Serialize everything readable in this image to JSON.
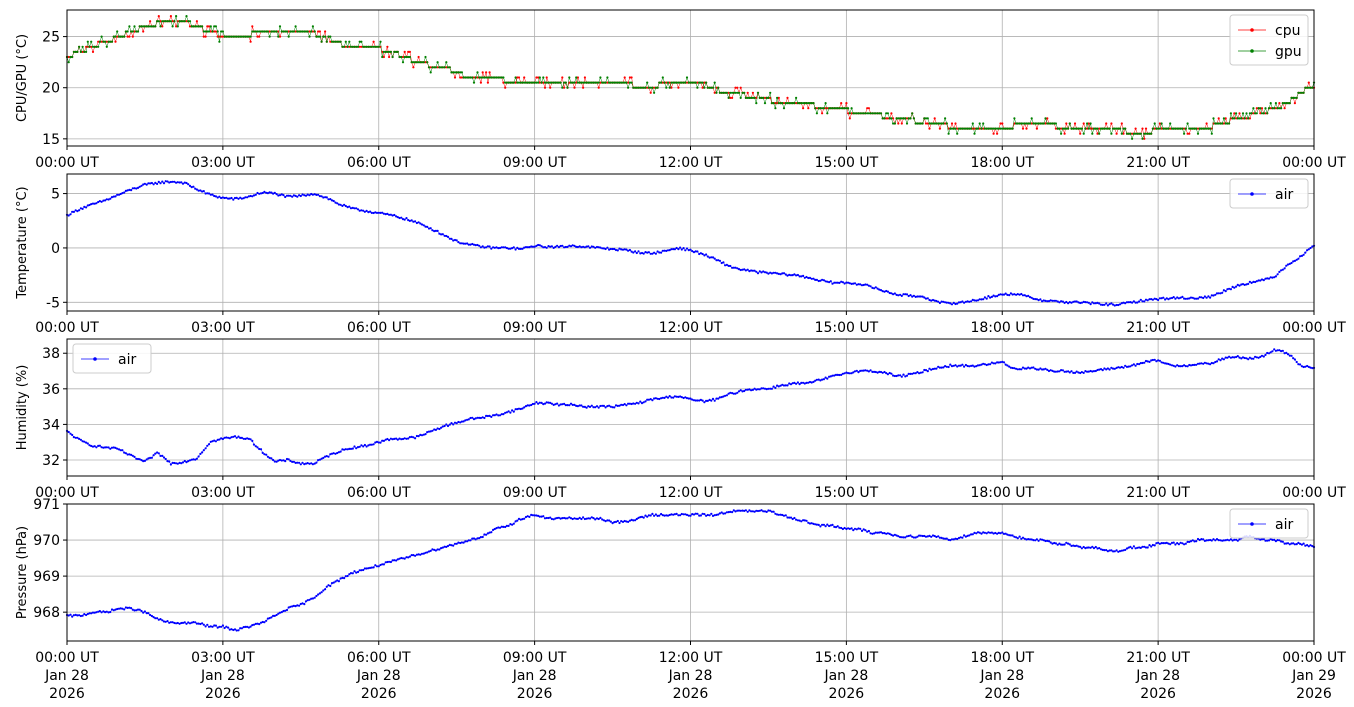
{
  "chart_data": [
    {
      "type": "line",
      "ylabel": "CPU/GPU (°C)",
      "xlim": [
        "2026-01-28T00:00",
        "2026-01-29T00:00"
      ],
      "ylim": [
        14.3,
        27.6
      ],
      "yticks": [
        15,
        20,
        25
      ],
      "grid": true,
      "legend_position": "top-right",
      "series": [
        {
          "name": "cpu",
          "color": "#ff0000",
          "x": [
            0,
            0.25,
            0.5,
            0.75,
            1,
            1.25,
            1.5,
            1.75,
            2,
            2.25,
            2.5,
            2.75,
            3,
            3.25,
            3.5,
            3.75,
            4,
            4.25,
            4.5,
            4.75,
            5,
            5.25,
            5.5,
            5.75,
            6,
            6.25,
            6.5,
            6.75,
            7,
            7.25,
            7.5,
            7.75,
            8,
            8.25,
            8.5,
            8.75,
            9,
            9.25,
            9.5,
            9.75,
            10,
            10.25,
            10.5,
            10.75,
            11,
            11.25,
            11.5,
            11.75,
            12,
            12.25,
            12.5,
            12.75,
            13,
            13.25,
            13.5,
            13.75,
            14,
            14.25,
            14.5,
            14.75,
            15,
            15.25,
            15.5,
            15.75,
            16,
            16.25,
            16.5,
            16.75,
            17,
            17.25,
            17.5,
            17.75,
            18,
            18.25,
            18.5,
            18.75,
            19,
            19.25,
            19.5,
            19.75,
            20,
            20.25,
            20.5,
            20.75,
            21,
            21.25,
            21.5,
            21.75,
            22,
            22.25,
            22.5,
            22.75,
            23,
            23.25,
            23.5,
            23.75,
            24
          ],
          "values": [
            23.0,
            23.5,
            24.0,
            24.5,
            25.0,
            25.5,
            26.0,
            26.3,
            26.6,
            26.5,
            26.0,
            25.5,
            25.0,
            25.0,
            25.2,
            25.5,
            25.6,
            25.6,
            25.5,
            25.3,
            25.0,
            24.3,
            24.0,
            24.0,
            23.8,
            23.5,
            23.0,
            22.5,
            22.2,
            22.0,
            21.5,
            21.0,
            21.0,
            20.8,
            20.7,
            20.6,
            20.6,
            20.6,
            20.7,
            20.7,
            20.7,
            20.6,
            20.5,
            20.3,
            20.2,
            20.2,
            20.3,
            20.4,
            20.5,
            20.2,
            19.8,
            19.5,
            19.3,
            19.0,
            18.8,
            18.6,
            18.4,
            18.3,
            18.2,
            18.0,
            17.8,
            17.6,
            17.4,
            17.2,
            17.0,
            16.8,
            16.6,
            16.5,
            16.2,
            16.0,
            16.0,
            16.0,
            16.0,
            16.3,
            16.5,
            16.4,
            16.3,
            16.0,
            16.0,
            16.0,
            16.0,
            15.8,
            15.7,
            15.7,
            15.8,
            16.0,
            16.1,
            16.2,
            16.2,
            16.5,
            17.0,
            17.2,
            17.5,
            18.0,
            18.5,
            19.5,
            20.3
          ]
        },
        {
          "name": "gpu",
          "color": "#008000",
          "x": [
            0,
            0.25,
            0.5,
            0.75,
            1,
            1.25,
            1.5,
            1.75,
            2,
            2.25,
            2.5,
            2.75,
            3,
            3.25,
            3.5,
            3.75,
            4,
            4.25,
            4.5,
            4.75,
            5,
            5.25,
            5.5,
            5.75,
            6,
            6.25,
            6.5,
            6.75,
            7,
            7.25,
            7.5,
            7.75,
            8,
            8.25,
            8.5,
            8.75,
            9,
            9.25,
            9.5,
            9.75,
            10,
            10.25,
            10.5,
            10.75,
            11,
            11.25,
            11.5,
            11.75,
            12,
            12.25,
            12.5,
            12.75,
            13,
            13.25,
            13.5,
            13.75,
            14,
            14.25,
            14.5,
            14.75,
            15,
            15.25,
            15.5,
            15.75,
            16,
            16.25,
            16.5,
            16.75,
            17,
            17.25,
            17.5,
            17.75,
            18,
            18.25,
            18.5,
            18.75,
            19,
            19.25,
            19.5,
            19.75,
            20,
            20.25,
            20.5,
            20.75,
            21,
            21.25,
            21.5,
            21.75,
            22,
            22.25,
            22.5,
            22.75,
            23,
            23.25,
            23.5,
            23.75,
            24
          ],
          "values": [
            23.0,
            23.5,
            24.0,
            24.5,
            25.0,
            25.5,
            26.0,
            26.3,
            26.6,
            26.5,
            26.0,
            25.5,
            25.0,
            25.0,
            25.2,
            25.5,
            25.6,
            25.6,
            25.5,
            25.3,
            25.0,
            24.3,
            24.0,
            24.0,
            23.8,
            23.5,
            23.0,
            22.5,
            22.2,
            22.0,
            21.5,
            21.0,
            21.0,
            20.8,
            20.7,
            20.6,
            20.6,
            20.6,
            20.7,
            20.7,
            20.7,
            20.6,
            20.5,
            20.3,
            20.2,
            20.2,
            20.3,
            20.4,
            20.5,
            20.2,
            19.8,
            19.5,
            19.3,
            19.0,
            18.8,
            18.6,
            18.4,
            18.3,
            18.2,
            18.0,
            17.8,
            17.6,
            17.4,
            17.2,
            17.0,
            16.8,
            16.6,
            16.5,
            16.2,
            16.0,
            16.0,
            16.0,
            16.0,
            16.3,
            16.5,
            16.4,
            16.3,
            16.0,
            16.0,
            16.0,
            16.0,
            15.8,
            15.7,
            15.7,
            15.8,
            16.0,
            16.1,
            16.2,
            16.2,
            16.5,
            17.0,
            17.2,
            17.5,
            18.0,
            18.5,
            19.5,
            20.3
          ]
        }
      ]
    },
    {
      "type": "line",
      "ylabel": "Temperature (°C)",
      "xlim": [
        "2026-01-28T00:00",
        "2026-01-29T00:00"
      ],
      "ylim": [
        -5.8,
        6.8
      ],
      "yticks": [
        -5,
        0,
        5
      ],
      "grid": true,
      "legend_position": "top-right",
      "series": [
        {
          "name": "air",
          "color": "#0000ff",
          "x": [
            0,
            0.25,
            0.5,
            0.75,
            1,
            1.25,
            1.5,
            1.75,
            2,
            2.25,
            2.5,
            2.75,
            3,
            3.25,
            3.5,
            3.75,
            4,
            4.25,
            4.5,
            4.75,
            5,
            5.25,
            5.5,
            5.75,
            6,
            6.25,
            6.5,
            6.75,
            7,
            7.25,
            7.5,
            7.75,
            8,
            8.25,
            8.5,
            8.75,
            9,
            9.25,
            9.5,
            9.75,
            10,
            10.25,
            10.5,
            10.75,
            11,
            11.25,
            11.5,
            11.75,
            12,
            12.25,
            12.5,
            12.75,
            13,
            13.25,
            13.5,
            13.75,
            14,
            14.25,
            14.5,
            14.75,
            15,
            15.25,
            15.5,
            15.75,
            16,
            16.25,
            16.5,
            16.75,
            17,
            17.25,
            17.5,
            17.75,
            18,
            18.25,
            18.5,
            18.75,
            19,
            19.25,
            19.5,
            19.75,
            20,
            20.25,
            20.5,
            20.75,
            21,
            21.25,
            21.5,
            21.75,
            22,
            22.25,
            22.5,
            22.75,
            23,
            23.25,
            23.5,
            23.75,
            24
          ],
          "values": [
            3.0,
            3.6,
            4.0,
            4.4,
            4.9,
            5.4,
            5.8,
            6.0,
            6.1,
            6.0,
            5.4,
            4.9,
            4.6,
            4.5,
            4.7,
            5.1,
            5.0,
            4.7,
            4.8,
            5.0,
            4.6,
            4.0,
            3.6,
            3.4,
            3.2,
            3.0,
            2.7,
            2.3,
            1.8,
            1.2,
            0.6,
            0.3,
            0.1,
            0.0,
            0.0,
            -0.1,
            0.2,
            0.1,
            0.1,
            0.2,
            0.1,
            0.0,
            -0.1,
            -0.2,
            -0.4,
            -0.5,
            -0.3,
            0.0,
            -0.2,
            -0.6,
            -1.1,
            -1.7,
            -2.0,
            -2.2,
            -2.3,
            -2.4,
            -2.5,
            -2.7,
            -3.0,
            -3.2,
            -3.2,
            -3.3,
            -3.6,
            -4.0,
            -4.3,
            -4.4,
            -4.5,
            -5.0,
            -5.1,
            -5.0,
            -4.8,
            -4.5,
            -4.3,
            -4.2,
            -4.5,
            -4.8,
            -4.9,
            -5.0,
            -5.0,
            -5.1,
            -5.2,
            -5.2,
            -5.0,
            -4.8,
            -4.7,
            -4.6,
            -4.6,
            -4.6,
            -4.5,
            -4.0,
            -3.5,
            -3.2,
            -3.0,
            -2.6,
            -1.5,
            -0.8,
            0.3
          ]
        }
      ]
    },
    {
      "type": "line",
      "ylabel": "Humidity (%)",
      "xlim": [
        "2026-01-28T00:00",
        "2026-01-29T00:00"
      ],
      "ylim": [
        31.1,
        38.8
      ],
      "yticks": [
        32,
        34,
        36,
        38
      ],
      "grid": true,
      "legend_position": "top-left",
      "series": [
        {
          "name": "air",
          "color": "#0000ff",
          "x": [
            0,
            0.25,
            0.5,
            0.75,
            1,
            1.25,
            1.5,
            1.75,
            2,
            2.25,
            2.5,
            2.75,
            3,
            3.25,
            3.5,
            3.75,
            4,
            4.25,
            4.5,
            4.75,
            5,
            5.25,
            5.5,
            5.75,
            6,
            6.25,
            6.5,
            6.75,
            7,
            7.25,
            7.5,
            7.75,
            8,
            8.25,
            8.5,
            8.75,
            9,
            9.25,
            9.5,
            9.75,
            10,
            10.25,
            10.5,
            10.75,
            11,
            11.25,
            11.5,
            11.75,
            12,
            12.25,
            12.5,
            12.75,
            13,
            13.25,
            13.5,
            13.75,
            14,
            14.25,
            14.5,
            14.75,
            15,
            15.25,
            15.5,
            15.75,
            16,
            16.25,
            16.5,
            16.75,
            17,
            17.25,
            17.5,
            17.75,
            18,
            18.25,
            18.5,
            18.75,
            19,
            19.25,
            19.5,
            19.75,
            20,
            20.25,
            20.5,
            20.75,
            21,
            21.25,
            21.5,
            21.75,
            22,
            22.25,
            22.5,
            22.75,
            23,
            23.25,
            23.5,
            23.75,
            24
          ],
          "values": [
            33.6,
            33.1,
            32.8,
            32.7,
            32.6,
            32.2,
            31.9,
            32.4,
            31.8,
            31.9,
            32.1,
            33.0,
            33.2,
            33.3,
            33.2,
            32.5,
            31.9,
            32.0,
            31.8,
            31.8,
            32.2,
            32.5,
            32.7,
            32.8,
            33.0,
            33.2,
            33.2,
            33.3,
            33.6,
            33.9,
            34.1,
            34.3,
            34.4,
            34.5,
            34.7,
            34.9,
            35.2,
            35.2,
            35.1,
            35.1,
            35.0,
            35.0,
            35.0,
            35.1,
            35.2,
            35.4,
            35.5,
            35.6,
            35.4,
            35.3,
            35.4,
            35.7,
            35.9,
            36.0,
            36.0,
            36.2,
            36.3,
            36.3,
            36.5,
            36.7,
            36.9,
            37.0,
            37.0,
            36.9,
            36.7,
            36.8,
            37.0,
            37.2,
            37.3,
            37.3,
            37.3,
            37.4,
            37.5,
            37.1,
            37.2,
            37.1,
            37.0,
            37.0,
            36.9,
            37.0,
            37.1,
            37.2,
            37.3,
            37.5,
            37.6,
            37.3,
            37.3,
            37.4,
            37.4,
            37.7,
            37.8,
            37.7,
            37.8,
            38.2,
            38.0,
            37.3,
            37.2
          ]
        }
      ]
    },
    {
      "type": "line",
      "ylabel": "Pressure (hPa)",
      "xlim": [
        "2026-01-28T00:00",
        "2026-01-29T00:00"
      ],
      "ylim": [
        967.2,
        971.0
      ],
      "yticks": [
        968,
        969,
        970,
        971
      ],
      "grid": true,
      "legend_position": "top-right",
      "series": [
        {
          "name": "air",
          "color": "#0000ff",
          "x": [
            0,
            0.25,
            0.5,
            0.75,
            1,
            1.25,
            1.5,
            1.75,
            2,
            2.25,
            2.5,
            2.75,
            3,
            3.25,
            3.5,
            3.75,
            4,
            4.25,
            4.5,
            4.75,
            5,
            5.25,
            5.5,
            5.75,
            6,
            6.25,
            6.5,
            6.75,
            7,
            7.25,
            7.5,
            7.75,
            8,
            8.25,
            8.5,
            8.75,
            9,
            9.25,
            9.5,
            9.75,
            10,
            10.25,
            10.5,
            10.75,
            11,
            11.25,
            11.5,
            11.75,
            12,
            12.25,
            12.5,
            12.75,
            13,
            13.25,
            13.5,
            13.75,
            14,
            14.25,
            14.5,
            14.75,
            15,
            15.25,
            15.5,
            15.75,
            16,
            16.25,
            16.5,
            16.75,
            17,
            17.25,
            17.5,
            17.75,
            18,
            18.25,
            18.5,
            18.75,
            19,
            19.25,
            19.5,
            19.75,
            20,
            20.25,
            20.5,
            20.75,
            21,
            21.25,
            21.5,
            21.75,
            22,
            22.25,
            22.5,
            22.75,
            23,
            23.25,
            23.5,
            23.75,
            24
          ],
          "values": [
            967.9,
            967.9,
            968.0,
            968.0,
            968.1,
            968.1,
            968.0,
            967.8,
            967.7,
            967.7,
            967.7,
            967.6,
            967.6,
            967.5,
            967.6,
            967.7,
            967.9,
            968.1,
            968.2,
            968.4,
            968.7,
            968.9,
            969.1,
            969.2,
            969.3,
            969.4,
            969.5,
            969.6,
            969.7,
            969.8,
            969.9,
            970.0,
            970.1,
            970.3,
            970.4,
            970.6,
            970.7,
            970.6,
            970.6,
            970.6,
            970.6,
            970.6,
            970.5,
            970.5,
            970.6,
            970.7,
            970.7,
            970.7,
            970.7,
            970.7,
            970.7,
            970.8,
            970.8,
            970.8,
            970.8,
            970.7,
            970.6,
            970.5,
            970.4,
            970.4,
            970.3,
            970.3,
            970.2,
            970.2,
            970.1,
            970.1,
            970.1,
            970.1,
            970.0,
            970.1,
            970.2,
            970.2,
            970.2,
            970.1,
            970.0,
            970.0,
            969.9,
            969.9,
            969.8,
            969.8,
            969.7,
            969.7,
            969.8,
            969.8,
            969.9,
            969.9,
            969.9,
            970.0,
            970.0,
            970.0,
            970.0,
            970.1,
            970.0,
            970.0,
            969.9,
            969.9,
            969.8
          ]
        }
      ]
    }
  ],
  "x_ticks": [
    "00:00 UT",
    "03:00 UT",
    "06:00 UT",
    "09:00 UT",
    "12:00 UT",
    "15:00 UT",
    "18:00 UT",
    "21:00 UT",
    "00:00 UT"
  ],
  "x_tick_dates": [
    "Jan 28",
    "Jan 28",
    "Jan 28",
    "Jan 28",
    "Jan 28",
    "Jan 28",
    "Jan 28",
    "Jan 28",
    "Jan 29"
  ],
  "x_tick_years": [
    "2026",
    "2026",
    "2026",
    "2026",
    "2026",
    "2026",
    "2026",
    "2026",
    "2026"
  ]
}
